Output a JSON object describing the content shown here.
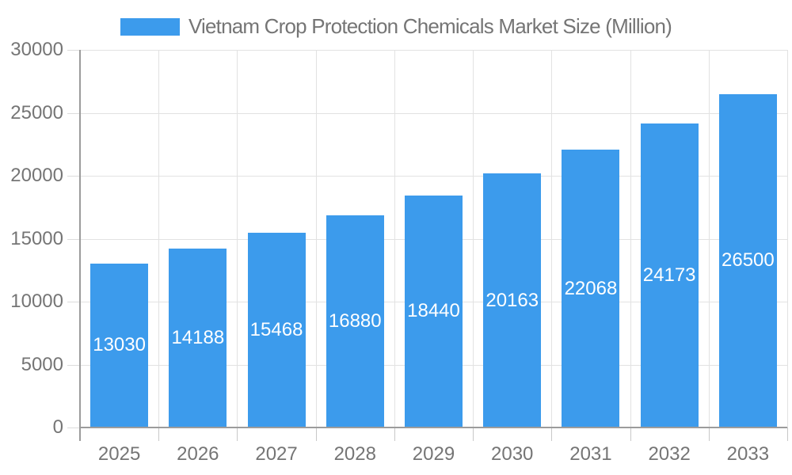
{
  "chart_data": {
    "type": "bar",
    "title": "Vietnam Crop Protection Chemicals Market Size (Million)",
    "categories": [
      "2025",
      "2026",
      "2027",
      "2028",
      "2029",
      "2030",
      "2031",
      "2032",
      "2033"
    ],
    "values": [
      13030,
      14188,
      15468,
      16880,
      18440,
      20163,
      22068,
      24173,
      26500
    ],
    "value_labels": [
      "13030",
      "14188",
      "15468",
      "16880",
      "18440",
      "20163",
      "22068",
      "24173",
      "26500"
    ],
    "xlabel": "",
    "ylabel": "",
    "ylim": [
      0,
      30000
    ],
    "yticks": [
      0,
      5000,
      10000,
      15000,
      20000,
      25000,
      30000
    ],
    "ytick_labels": [
      "0",
      "5000",
      "10000",
      "15000",
      "20000",
      "25000",
      "30000"
    ],
    "grid": true,
    "legend_position": "top-center",
    "colors": {
      "bar": "#3C9BEC",
      "value_label": "#ffffff",
      "axis_text": "#757575",
      "gridline": "#e2e2e2",
      "axis_line": "#9c9c9c"
    }
  },
  "legend": {
    "label": "Vietnam Crop Protection Chemicals Market Size (Million)"
  }
}
